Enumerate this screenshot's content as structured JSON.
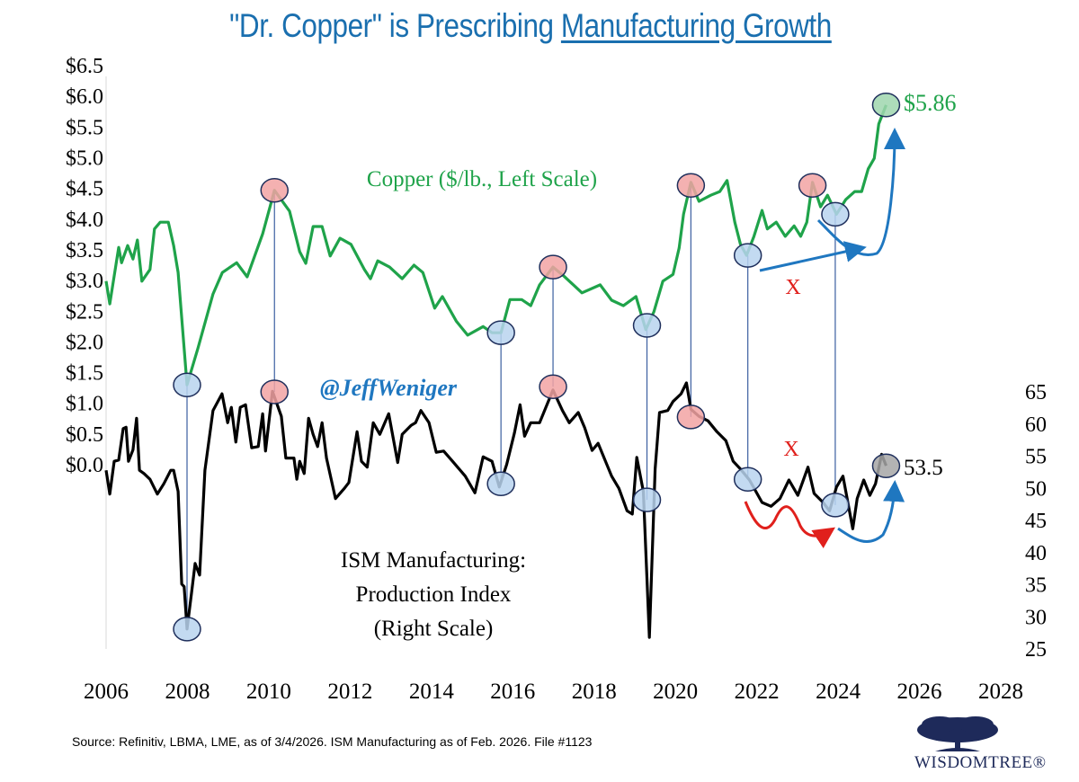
{
  "title": {
    "prefix": "\"Dr. Copper\" is Prescribing ",
    "underlined": "Manufacturing Growth"
  },
  "source": "Source: Refinitiv, LBMA, LME, as of 3/4/2026. ISM Manufacturing as of Feb. 2026. File #1123",
  "logo": {
    "text": "WISDOMTREE®"
  },
  "colors": {
    "title": "#1a6faf",
    "copper": "#1fa34a",
    "ism": "#000000",
    "arrow_blue": "#1f77c0",
    "arrow_red": "#e0201c",
    "trough_marker": "#b9d4ef",
    "peak_marker": "#f2a3a3",
    "latest_ism_marker": "#a6a6a6",
    "latest_copper_marker": "#9fd6ae"
  },
  "chart_data": {
    "type": "line",
    "title": "\"Dr. Copper\" is Prescribing Manufacturing Growth",
    "x_ticks": [
      "2006",
      "2008",
      "2010",
      "2012",
      "2014",
      "2016",
      "2018",
      "2020",
      "2022",
      "2024",
      "2026",
      "2028"
    ],
    "xlim": [
      2006,
      2028
    ],
    "left_axis": {
      "ylim": [
        0,
        6.5
      ],
      "ticks": [
        "$6.5",
        "$6.0",
        "$5.5",
        "$5.0",
        "$4.5",
        "$4.0",
        "$3.5",
        "$3.0",
        "$2.5",
        "$2.0",
        "$1.5",
        "$1.0",
        "$0.5",
        "$0.0"
      ]
    },
    "right_axis": {
      "ylim": [
        25,
        65
      ],
      "ticks": [
        "65",
        "60",
        "55",
        "50",
        "45",
        "40",
        "35",
        "30",
        "25"
      ]
    },
    "grid": false,
    "series": [
      {
        "name": "Copper ($/lb., Left Scale)",
        "axis": "left",
        "x": [
          2006.0,
          2006.09,
          2006.31,
          2006.38,
          2006.53,
          2006.66,
          2006.77,
          2006.88,
          2007.08,
          2007.19,
          2007.33,
          2007.53,
          2007.66,
          2007.77,
          2007.99,
          2008.26,
          2008.63,
          2008.86,
          2009.21,
          2009.47,
          2009.85,
          2010.03,
          2010.14,
          2010.51,
          2010.76,
          2010.91,
          2011.09,
          2011.31,
          2011.51,
          2011.75,
          2012.02,
          2012.35,
          2012.5,
          2012.68,
          2012.97,
          2013.28,
          2013.57,
          2013.79,
          2014.08,
          2014.27,
          2014.61,
          2014.89,
          2015.27,
          2015.49,
          2015.71,
          2015.93,
          2016.22,
          2016.44,
          2016.66,
          2016.99,
          2017.26,
          2017.7,
          2018.15,
          2018.43,
          2018.72,
          2019.03,
          2019.27,
          2019.47,
          2019.69,
          2019.94,
          2020.09,
          2020.2,
          2020.38,
          2020.58,
          2020.87,
          2021.09,
          2021.27,
          2021.46,
          2021.6,
          2021.75,
          2021.93,
          2022.13,
          2022.26,
          2022.48,
          2022.7,
          2022.92,
          2023.08,
          2023.23,
          2023.37,
          2023.57,
          2023.74,
          2023.96,
          2024.19,
          2024.41,
          2024.58,
          2024.74,
          2024.89,
          2025.0,
          2025.18
        ],
        "y": [
          2.99,
          2.62,
          3.54,
          3.29,
          3.57,
          3.35,
          3.66,
          2.99,
          3.18,
          3.84,
          3.95,
          3.95,
          3.57,
          3.13,
          1.3,
          1.9,
          2.78,
          3.13,
          3.29,
          3.06,
          3.76,
          4.2,
          4.47,
          4.13,
          3.47,
          3.28,
          3.88,
          3.88,
          3.4,
          3.69,
          3.59,
          3.18,
          3.03,
          3.32,
          3.22,
          3.03,
          3.25,
          3.13,
          2.55,
          2.74,
          2.34,
          2.11,
          2.25,
          2.15,
          2.15,
          2.69,
          2.69,
          2.59,
          2.93,
          3.22,
          3.07,
          2.8,
          2.93,
          2.68,
          2.59,
          2.74,
          2.2,
          2.49,
          2.99,
          3.1,
          3.53,
          4.08,
          4.6,
          4.29,
          4.39,
          4.45,
          4.63,
          3.95,
          3.59,
          3.41,
          3.72,
          4.14,
          3.84,
          3.95,
          3.72,
          3.89,
          3.72,
          3.95,
          4.6,
          4.2,
          4.39,
          4.08,
          4.32,
          4.45,
          4.45,
          4.82,
          4.99,
          5.55,
          5.86
        ]
      },
      {
        "name": "ISM Manufacturing: Production Index (Right Scale)",
        "axis": "right",
        "x": [
          2006.0,
          2006.09,
          2006.2,
          2006.31,
          2006.42,
          2006.49,
          2006.55,
          2006.66,
          2006.75,
          2006.82,
          2006.93,
          2007.08,
          2007.26,
          2007.42,
          2007.59,
          2007.66,
          2007.77,
          2007.86,
          2007.92,
          2007.99,
          2008.1,
          2008.19,
          2008.3,
          2008.43,
          2008.63,
          2008.85,
          2008.99,
          2009.08,
          2009.19,
          2009.3,
          2009.43,
          2009.58,
          2009.74,
          2009.85,
          2009.92,
          2010.09,
          2010.31,
          2010.42,
          2010.62,
          2010.69,
          2010.76,
          2010.87,
          2010.98,
          2011.09,
          2011.2,
          2011.31,
          2011.42,
          2011.64,
          2011.86,
          2011.97,
          2012.17,
          2012.28,
          2012.42,
          2012.57,
          2012.73,
          2012.95,
          2013.17,
          2013.28,
          2013.5,
          2013.61,
          2013.74,
          2013.94,
          2014.12,
          2014.3,
          2014.52,
          2014.83,
          2015.07,
          2015.27,
          2015.49,
          2015.67,
          2015.85,
          2016.04,
          2016.18,
          2016.29,
          2016.44,
          2016.66,
          2016.99,
          2017.22,
          2017.39,
          2017.61,
          2017.77,
          2017.95,
          2018.1,
          2018.28,
          2018.43,
          2018.61,
          2018.81,
          2018.94,
          2019.05,
          2019.21,
          2019.36,
          2019.5,
          2019.61,
          2019.81,
          2019.94,
          2020.14,
          2020.27,
          2020.38,
          2020.58,
          2020.8,
          2021.02,
          2021.24,
          2021.42,
          2021.6,
          2021.82,
          2022.13,
          2022.35,
          2022.57,
          2022.79,
          2023.01,
          2023.26,
          2023.41,
          2023.63,
          2023.79,
          2023.96,
          2024.12,
          2024.36,
          2024.47,
          2024.63,
          2024.78,
          2024.92,
          2025.07,
          2025.18
        ],
        "y": [
          52.8,
          49.1,
          54.2,
          54.4,
          59.3,
          59.5,
          54.2,
          56.0,
          60.9,
          52.8,
          52.3,
          51.4,
          49.1,
          50.7,
          52.8,
          52.8,
          49.5,
          35.1,
          34.7,
          28.1,
          33.7,
          38.3,
          36.5,
          52.8,
          62.1,
          64.7,
          60.2,
          62.6,
          57.2,
          62.6,
          63.0,
          56.3,
          56.5,
          61.6,
          55.8,
          65.1,
          61.2,
          54.7,
          54.7,
          51.4,
          54.2,
          52.3,
          60.9,
          58.4,
          56.5,
          60.2,
          54.7,
          48.4,
          50.0,
          50.9,
          58.8,
          54.2,
          53.3,
          60.2,
          58.4,
          61.6,
          54.0,
          58.4,
          59.8,
          60.2,
          62.1,
          60.2,
          55.6,
          55.8,
          54.2,
          51.9,
          49.3,
          54.9,
          54.2,
          50.2,
          53.7,
          58.6,
          63.0,
          58.1,
          60.2,
          60.2,
          65.3,
          62.1,
          60.2,
          61.8,
          59.4,
          55.9,
          57.0,
          54.2,
          51.9,
          50.0,
          46.5,
          46.0,
          54.8,
          49.5,
          26.8,
          53.0,
          61.8,
          62.1,
          63.5,
          64.7,
          66.4,
          62.3,
          61.2,
          60.5,
          58.8,
          57.4,
          54.2,
          53.0,
          51.3,
          47.8,
          47.2,
          48.4,
          51.3,
          48.9,
          53.3,
          49.2,
          47.8,
          46.5,
          50.2,
          51.9,
          43.7,
          48.4,
          51.3,
          48.9,
          50.7,
          55.3,
          53.5
        ]
      }
    ],
    "markers": [
      {
        "kind": "trough",
        "x": 2007.99,
        "copper": 1.3,
        "ism": 28.1
      },
      {
        "kind": "peak",
        "x": 2010.14,
        "copper": 4.47,
        "ism": 65.0
      },
      {
        "kind": "trough",
        "x": 2015.71,
        "copper": 2.15,
        "ism": 50.7
      },
      {
        "kind": "peak",
        "x": 2016.99,
        "copper": 3.22,
        "ism": 65.8
      },
      {
        "kind": "trough",
        "x": 2019.3,
        "copper": 2.27,
        "ism": 48.2
      },
      {
        "kind": "peak",
        "x": 2020.38,
        "copper": 4.55,
        "ism": 61.1
      },
      {
        "kind": "trough",
        "x": 2021.78,
        "copper": 3.41,
        "ism": 51.4
      },
      {
        "kind": "trough",
        "x": 2023.93,
        "copper": 4.08,
        "ism": 47.4
      },
      {
        "kind": "peak",
        "x": 2023.37,
        "copper": 4.55,
        "ism": null
      },
      {
        "kind": "latest",
        "x": 2025.18,
        "copper": 5.86,
        "ism": 53.5
      }
    ],
    "annotations": {
      "copper_label": "Copper ($/lb., Left Scale)",
      "ism_label": [
        "ISM Manufacturing:",
        "Production Index",
        "(Right Scale)"
      ],
      "handle": "@JeffWeniger",
      "copper_latest": "$5.86",
      "ism_latest": "53.5",
      "x_mark_top": "X",
      "x_mark_bottom": "X"
    }
  }
}
